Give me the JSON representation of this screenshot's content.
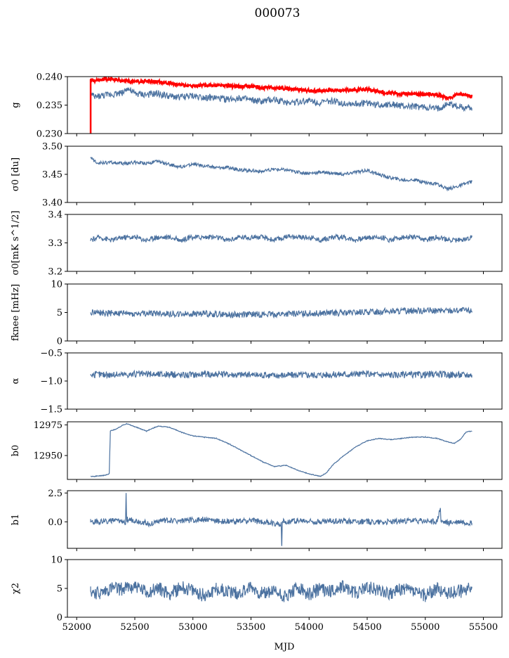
{
  "figure": {
    "title": "000073",
    "xlabel": "MJD"
  },
  "colors": {
    "series": "#4c72a0",
    "highlight": "#ff0000"
  },
  "x_ticks": [
    "52000",
    "52500",
    "53000",
    "53500",
    "54000",
    "54500",
    "55000",
    "55500"
  ],
  "chart_data": [
    {
      "type": "line",
      "ylabel": "g",
      "xlim": [
        51920,
        55660
      ],
      "ylim": [
        0.23,
        0.24
      ],
      "yticks": [
        0.23,
        0.235,
        0.24
      ],
      "ytick_labels": [
        "0.230",
        "0.235",
        "0.240"
      ],
      "series": [
        {
          "color": "#4c72a0",
          "x": [
            52120,
            52150,
            52200,
            52300,
            52400,
            52430,
            52500,
            52600,
            52700,
            52800,
            52900,
            53000,
            53100,
            53200,
            53300,
            53400,
            53500,
            53600,
            53700,
            53800,
            53900,
            54000,
            54100,
            54200,
            54300,
            54400,
            54500,
            54600,
            54700,
            54800,
            54900,
            55000,
            55100,
            55200,
            55300,
            55400
          ],
          "y": [
            0.237,
            0.2364,
            0.2366,
            0.2369,
            0.2372,
            0.238,
            0.237,
            0.2368,
            0.237,
            0.2365,
            0.2364,
            0.2366,
            0.2364,
            0.2362,
            0.236,
            0.2363,
            0.2358,
            0.2356,
            0.236,
            0.2355,
            0.2356,
            0.2358,
            0.2354,
            0.2357,
            0.2353,
            0.2352,
            0.2354,
            0.235,
            0.2352,
            0.2348,
            0.2347,
            0.2346,
            0.2343,
            0.2352,
            0.2347,
            0.2345
          ]
        },
        {
          "color": "#ff0000",
          "x": [
            52120,
            52150,
            52200,
            52300,
            52400,
            52500,
            52600,
            52700,
            52800,
            52900,
            53000,
            53100,
            53200,
            53300,
            53400,
            53500,
            53600,
            53700,
            53800,
            53900,
            54000,
            54100,
            54200,
            54300,
            54400,
            54500,
            54600,
            54700,
            54800,
            54900,
            55000,
            55100,
            55200,
            55300,
            55400
          ],
          "y": [
            0.2395,
            0.2393,
            0.2395,
            0.2396,
            0.2393,
            0.2391,
            0.2392,
            0.2391,
            0.2389,
            0.2385,
            0.2384,
            0.2385,
            0.2384,
            0.2384,
            0.2382,
            0.2383,
            0.2381,
            0.238,
            0.2379,
            0.2378,
            0.2375,
            0.2375,
            0.2376,
            0.2376,
            0.2377,
            0.2378,
            0.2373,
            0.2371,
            0.2369,
            0.237,
            0.2369,
            0.2368,
            0.2362,
            0.237,
            0.2365
          ]
        }
      ]
    },
    {
      "type": "line",
      "ylabel": "σ0 [du]",
      "xlim": [
        51920,
        55660
      ],
      "ylim": [
        3.4,
        3.5
      ],
      "yticks": [
        3.4,
        3.45,
        3.5
      ],
      "ytick_labels": [
        "3.40",
        "3.45",
        "3.50"
      ],
      "series": [
        {
          "color": "#4c72a0",
          "x": [
            52120,
            52150,
            52200,
            52300,
            52400,
            52500,
            52600,
            52700,
            52800,
            52900,
            53000,
            53100,
            53200,
            53300,
            53400,
            53500,
            53600,
            53700,
            53800,
            53900,
            54000,
            54100,
            54200,
            54300,
            54400,
            54500,
            54600,
            54700,
            54800,
            54900,
            55000,
            55100,
            55200,
            55300,
            55400
          ],
          "y": [
            3.48,
            3.474,
            3.47,
            3.471,
            3.469,
            3.471,
            3.47,
            3.473,
            3.467,
            3.463,
            3.468,
            3.465,
            3.462,
            3.462,
            3.458,
            3.457,
            3.455,
            3.459,
            3.458,
            3.454,
            3.452,
            3.454,
            3.452,
            3.45,
            3.454,
            3.457,
            3.45,
            3.444,
            3.44,
            3.44,
            3.436,
            3.432,
            3.424,
            3.43,
            3.437
          ]
        }
      ]
    },
    {
      "type": "line",
      "ylabel": "σ0[mK s^1/2]",
      "xlim": [
        51920,
        55660
      ],
      "ylim": [
        3.2,
        3.4
      ],
      "yticks": [
        3.2,
        3.3,
        3.4
      ],
      "ytick_labels": [
        "3.2",
        "3.3",
        "3.4"
      ],
      "series": [
        {
          "color": "#4c72a0",
          "x": [
            52120,
            52200,
            52300,
            52400,
            52500,
            52600,
            52700,
            52800,
            52900,
            53000,
            53100,
            53200,
            53300,
            53400,
            53500,
            53600,
            53700,
            53800,
            53900,
            54000,
            54100,
            54200,
            54300,
            54400,
            54500,
            54600,
            54700,
            54800,
            54900,
            55000,
            55100,
            55200,
            55300,
            55400
          ],
          "y": [
            3.31,
            3.32,
            3.31,
            3.32,
            3.32,
            3.31,
            3.32,
            3.32,
            3.31,
            3.32,
            3.32,
            3.32,
            3.31,
            3.32,
            3.32,
            3.32,
            3.31,
            3.32,
            3.32,
            3.32,
            3.31,
            3.32,
            3.32,
            3.31,
            3.32,
            3.32,
            3.31,
            3.32,
            3.32,
            3.31,
            3.32,
            3.31,
            3.31,
            3.32
          ]
        }
      ]
    },
    {
      "type": "line",
      "ylabel": "fknee [mHz]",
      "xlim": [
        51920,
        55660
      ],
      "ylim": [
        0,
        10
      ],
      "yticks": [
        0,
        5,
        10
      ],
      "ytick_labels": [
        "0",
        "5",
        "10"
      ],
      "series": [
        {
          "color": "#4c72a0",
          "x": [
            52120,
            52300,
            52500,
            52700,
            52900,
            53100,
            53300,
            53500,
            53700,
            53900,
            54100,
            54300,
            54500,
            54700,
            54900,
            55100,
            55300,
            55400
          ],
          "y": [
            5.0,
            4.9,
            4.8,
            4.9,
            4.7,
            4.8,
            4.6,
            4.7,
            4.7,
            4.8,
            4.9,
            4.9,
            5.1,
            5.2,
            5.3,
            5.3,
            5.4,
            5.3
          ]
        }
      ]
    },
    {
      "type": "line",
      "ylabel": "α",
      "xlim": [
        51920,
        55660
      ],
      "ylim": [
        -1.5,
        -0.5
      ],
      "yticks": [
        -1.5,
        -1.0,
        -0.5
      ],
      "ytick_labels": [
        "−1.5",
        "−1.0",
        "−0.5"
      ],
      "series": [
        {
          "color": "#4c72a0",
          "x": [
            52120,
            52300,
            52500,
            52700,
            52900,
            53100,
            53300,
            53500,
            53700,
            53900,
            54100,
            54300,
            54500,
            54700,
            54900,
            55100,
            55300,
            55400
          ],
          "y": [
            -0.88,
            -0.89,
            -0.88,
            -0.88,
            -0.89,
            -0.88,
            -0.88,
            -0.89,
            -0.9,
            -0.89,
            -0.89,
            -0.88,
            -0.88,
            -0.89,
            -0.89,
            -0.88,
            -0.89,
            -0.89
          ]
        }
      ]
    },
    {
      "type": "line",
      "ylabel": "b0",
      "xlim": [
        51920,
        55660
      ],
      "ylim": [
        12930.5,
        12977.5
      ],
      "yticks": [
        12950,
        12975
      ],
      "ytick_labels": [
        "12950",
        "12975"
      ],
      "series": [
        {
          "color": "#4c72a0",
          "x": [
            52120,
            52150,
            52200,
            52250,
            52280,
            52290,
            52350,
            52400,
            52430,
            52500,
            52600,
            52650,
            52700,
            52800,
            52900,
            53000,
            53100,
            53200,
            53300,
            53400,
            53500,
            53600,
            53700,
            53800,
            53900,
            54000,
            54100,
            54150,
            54200,
            54300,
            54400,
            54500,
            54600,
            54700,
            54800,
            54900,
            55000,
            55100,
            55200,
            55250,
            55300,
            55350,
            55400
          ],
          "y": [
            12933,
            12933,
            12933.5,
            12934,
            12935,
            12970,
            12972,
            12975,
            12976,
            12973.5,
            12970,
            12972,
            12974,
            12973,
            12969,
            12966,
            12965,
            12964,
            12960,
            12955,
            12950,
            12945,
            12941,
            12942,
            12938,
            12935,
            12933,
            12936,
            12942,
            12950,
            12957,
            12962,
            12964,
            12963,
            12964,
            12965,
            12965,
            12964,
            12961,
            12960,
            12963,
            12969,
            12970
          ]
        }
      ]
    },
    {
      "type": "line",
      "ylabel": "b1",
      "xlim": [
        51920,
        55660
      ],
      "ylim": [
        -2.3,
        2.7
      ],
      "yticks": [
        0.0,
        2.5
      ],
      "ytick_labels": [
        "0.0",
        "2.5"
      ],
      "series": [
        {
          "color": "#4c72a0",
          "x": [
            52120,
            52300,
            52420,
            52425,
            52430,
            52500,
            52640,
            52700,
            52900,
            53100,
            53300,
            53500,
            53760,
            53765,
            53770,
            53900,
            54100,
            54300,
            54500,
            54700,
            54900,
            55100,
            55130,
            55135,
            55200,
            55300,
            55400
          ],
          "y": [
            0.0,
            0.1,
            0.0,
            2.5,
            0.2,
            0.1,
            -0.2,
            0.1,
            0.1,
            0.2,
            0.0,
            0.1,
            -0.2,
            -2.1,
            0.0,
            0.1,
            0.0,
            0.1,
            0.0,
            0.0,
            0.1,
            0.0,
            1.2,
            0.0,
            -0.1,
            0.0,
            -0.1
          ]
        }
      ]
    },
    {
      "type": "line",
      "ylabel": "χ2",
      "xlim": [
        51920,
        55660
      ],
      "ylim": [
        0,
        10
      ],
      "yticks": [
        0,
        5,
        10
      ],
      "ytick_labels": [
        "0",
        "5",
        "10"
      ],
      "series": [
        {
          "color": "#4c72a0",
          "x": [
            52120,
            52200,
            52300,
            52400,
            52500,
            52600,
            52700,
            52800,
            52900,
            53000,
            53100,
            53200,
            53300,
            53400,
            53500,
            53600,
            53700,
            53800,
            53900,
            54000,
            54100,
            54200,
            54300,
            54400,
            54500,
            54600,
            54700,
            54800,
            54900,
            55000,
            55100,
            55200,
            55300,
            55400
          ],
          "y": [
            4.5,
            4.0,
            5.0,
            4.8,
            5.5,
            4.2,
            5.0,
            4.0,
            5.2,
            4.5,
            3.8,
            5.0,
            4.5,
            4.2,
            5.2,
            4.0,
            4.5,
            3.5,
            5.0,
            4.0,
            5.0,
            4.5,
            5.5,
            4.2,
            5.2,
            4.8,
            4.0,
            5.0,
            4.5,
            3.8,
            5.0,
            4.2,
            4.5,
            5.0
          ]
        }
      ]
    }
  ]
}
